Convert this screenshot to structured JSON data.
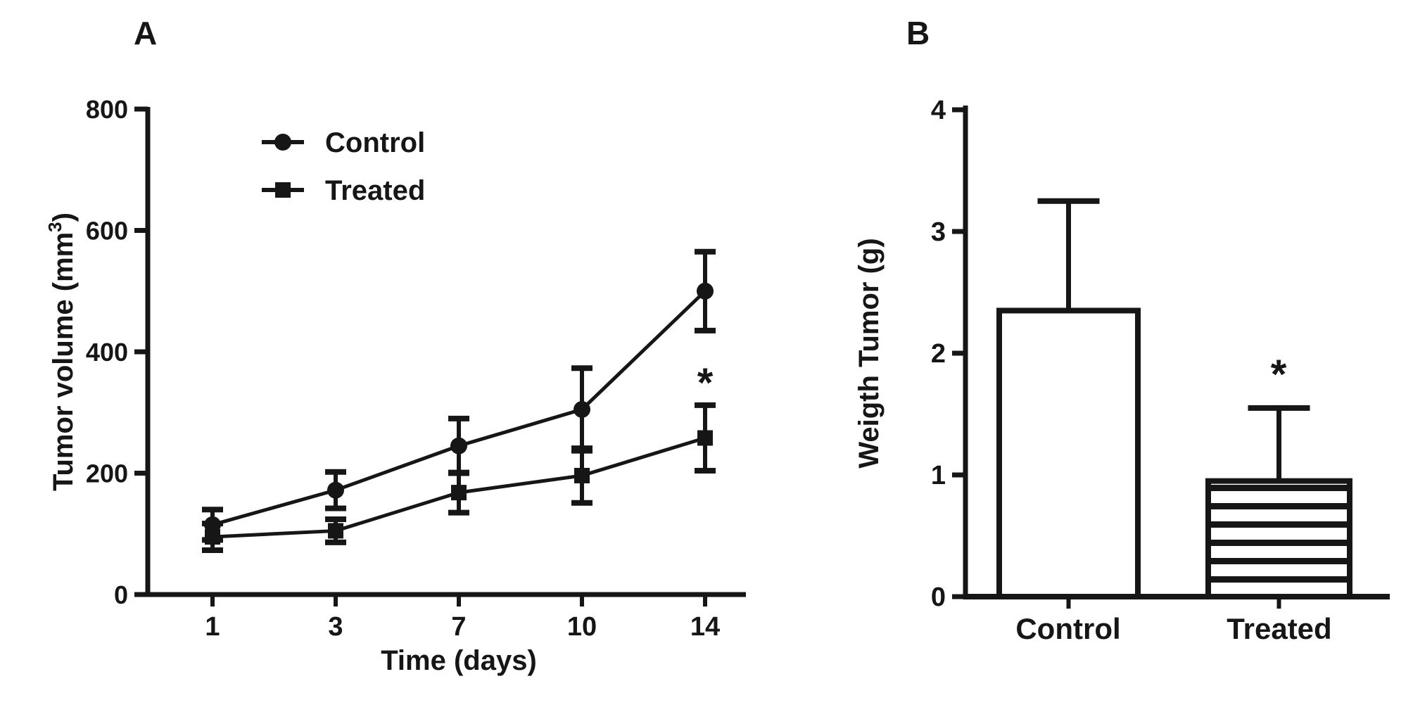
{
  "figure": {
    "background": "#ffffff",
    "ink_color": "#161616",
    "description_visible_text_only": true
  },
  "chart_data": [
    {
      "id": "panel_a",
      "type": "line",
      "panel_letter": "A",
      "xlabel": "Time (days)",
      "ylabel": "Tumor volume (mm³)",
      "ylabel_main": "Tumor volume (mm",
      "ylabel_sup": "3",
      "ylabel_end": ")",
      "x": [
        1,
        3,
        7,
        10,
        14
      ],
      "x_spacing": "equal",
      "yticks": [
        0,
        200,
        400,
        600,
        800
      ],
      "ylim": [
        0,
        800
      ],
      "grid": false,
      "legend_position": "inside-top-left",
      "series": [
        {
          "name": "Control",
          "marker": "circle",
          "color": "#161616",
          "values": [
            115,
            172,
            245,
            305,
            500
          ],
          "errors": [
            25,
            30,
            45,
            68,
            65
          ]
        },
        {
          "name": "Treated",
          "marker": "square",
          "color": "#161616",
          "values": [
            95,
            105,
            168,
            196,
            258
          ],
          "errors": [
            22,
            19,
            33,
            45,
            54
          ]
        }
      ],
      "annotation": {
        "text": "*",
        "above_series": "Treated",
        "above_x": 14
      }
    },
    {
      "id": "panel_b",
      "type": "bar",
      "panel_letter": "B",
      "ylabel": "Weigth Tumor (g)",
      "categories": [
        "Control",
        "Treated"
      ],
      "values": [
        2.35,
        0.95
      ],
      "errors": [
        0.9,
        0.6
      ],
      "error_direction": "up",
      "yticks": [
        0,
        1,
        2,
        3,
        4
      ],
      "ylim": [
        0,
        4
      ],
      "grid": false,
      "bar_styles": [
        "white-outline",
        "horizontal-stripes"
      ],
      "annotation": {
        "text": "*",
        "above_category": "Treated"
      }
    }
  ]
}
